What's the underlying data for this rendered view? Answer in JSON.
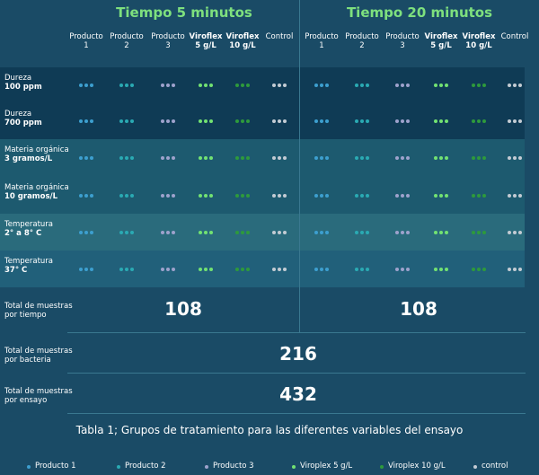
{
  "header": {
    "groups": [
      "Tiempo 5 minutos",
      "Tiempo 20 minutos"
    ],
    "columns": [
      {
        "name": "Producto",
        "sub": "1"
      },
      {
        "name": "Producto",
        "sub": "2"
      },
      {
        "name": "Producto",
        "sub": "3"
      },
      {
        "name": "Viroflex",
        "sub": "5 g/L"
      },
      {
        "name": "Viroflex",
        "sub": "10 g/L"
      },
      {
        "name": "Control",
        "sub": ""
      }
    ]
  },
  "rows": [
    {
      "label": "Dureza",
      "detail": "100 ppm"
    },
    {
      "label": "Dureza",
      "detail": "700 ppm"
    },
    {
      "label": "Materia orgánica",
      "detail": "3 gramos/L"
    },
    {
      "label": "Materia orgánica",
      "detail": "10 gramos/L"
    },
    {
      "label": "Temperatura",
      "detail": "2° a 8° C"
    },
    {
      "label": "Temperatura",
      "detail": "37° C"
    }
  ],
  "totals": [
    {
      "label": "Total de muestras",
      "detail": "por tiempo",
      "values": [
        108,
        108
      ]
    },
    {
      "label": "Total de muestras",
      "detail": "por bacteria",
      "values": [
        216
      ]
    },
    {
      "label": "Total de muestras",
      "detail": "por ensayo",
      "values": [
        432
      ]
    }
  ],
  "caption": "Tabla 1; Grupos de tratamiento para las diferentes variables del ensayo",
  "legend": [
    {
      "label": "Producto 1",
      "color": "#3d9fcf"
    },
    {
      "label": "Producto 2",
      "color": "#2aaab3"
    },
    {
      "label": "Producto 3",
      "color": "#9ea2cc"
    },
    {
      "label": "Viroplex 5 g/L",
      "color": "#72e272"
    },
    {
      "label": "Viroplex 10 g/L",
      "color": "#2e9a3c"
    },
    {
      "label": "control",
      "color": "#c3cbd3"
    }
  ]
}
